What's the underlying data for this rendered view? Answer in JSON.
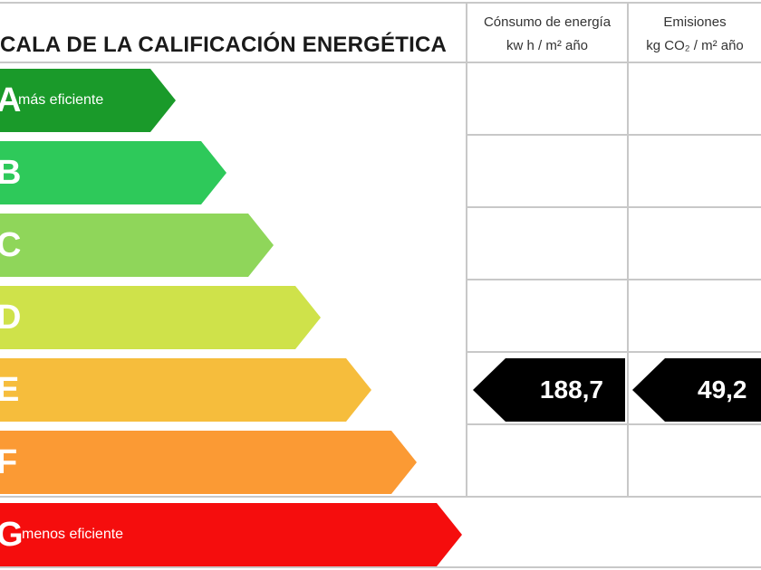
{
  "title": "CALA DE LA CALIFICACIÓN ENERGÉTICA",
  "columns": {
    "consumo": {
      "line1": "Cónsumo de energía",
      "line2": "kw h / m² año"
    },
    "emisiones": {
      "line1": "Emisiones",
      "line2": "kg CO₂ / m² año"
    }
  },
  "ratings": [
    {
      "letter": "A",
      "note": "más eficiente",
      "color": "#1a9a2a"
    },
    {
      "letter": "B",
      "note": "",
      "color": "#2ec95a"
    },
    {
      "letter": "C",
      "note": "",
      "color": "#8fd65a"
    },
    {
      "letter": "D",
      "note": "",
      "color": "#cfe24a"
    },
    {
      "letter": "E",
      "note": "",
      "color": "#f6bd3c"
    },
    {
      "letter": "F",
      "note": "",
      "color": "#fb9a34"
    },
    {
      "letter": "G",
      "note": "menos eficiente",
      "color": "#f50d0d"
    }
  ],
  "current": {
    "rating": "E",
    "consumo_value": "188,7",
    "emisiones_value": "49,2",
    "badge_color": "#000000"
  }
}
